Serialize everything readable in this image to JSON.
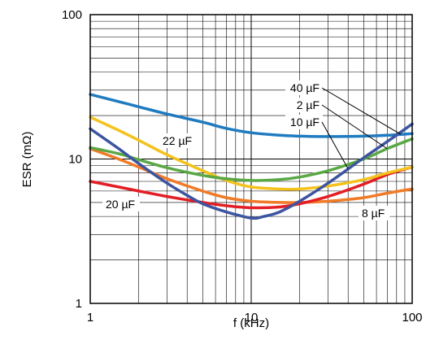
{
  "chart_data": {
    "type": "line",
    "title": "",
    "xlabel": "f (kHz)",
    "ylabel": "ESR (mΩ)",
    "xscale": "log",
    "yscale": "log",
    "xlim": [
      1,
      100
    ],
    "ylim": [
      1,
      100
    ],
    "grid": true,
    "x_ticks": [
      "1",
      "10",
      "100"
    ],
    "y_ticks": [
      "1",
      "10",
      "100"
    ],
    "series": [
      {
        "name": "40 µF",
        "color": "#1f7bc0",
        "x": [
          1,
          1.5,
          2,
          3,
          5,
          7,
          10,
          15,
          20,
          30,
          50,
          70,
          100
        ],
        "y": [
          28,
          25,
          23,
          20.5,
          18,
          16.3,
          15.2,
          14.6,
          14.4,
          14.3,
          14.4,
          14.6,
          15
        ]
      },
      {
        "name": "2 µF",
        "color": "#5aa845",
        "x": [
          1,
          1.5,
          2,
          3,
          5,
          7,
          10,
          15,
          20,
          30,
          50,
          70,
          100
        ],
        "y": [
          12,
          10.9,
          9.9,
          8.7,
          7.7,
          7.3,
          7.1,
          7.2,
          7.5,
          8.3,
          10,
          11.8,
          13.8
        ]
      },
      {
        "name": "10 µF",
        "color": "#3d54a0",
        "x": [
          1,
          1.5,
          2,
          3,
          4,
          5,
          7,
          10,
          12,
          15,
          20,
          30,
          50,
          70,
          100
        ],
        "y": [
          16.2,
          11.8,
          9.3,
          6.8,
          5.6,
          4.9,
          4.3,
          3.9,
          4.0,
          4.3,
          5.1,
          6.8,
          10.2,
          13.2,
          17.5
        ]
      },
      {
        "name": "22 µF",
        "color": "#f4c21b",
        "x": [
          1,
          1.5,
          2,
          3,
          5,
          7,
          10,
          15,
          20,
          30,
          50,
          70,
          100
        ],
        "y": [
          19.5,
          15.8,
          13.5,
          10.7,
          8.3,
          7.1,
          6.4,
          6.2,
          6.2,
          6.5,
          7.2,
          8,
          8.8
        ]
      },
      {
        "name": "20 µF",
        "color": "#e31e24",
        "x": [
          1,
          1.5,
          2,
          3,
          5,
          7,
          10,
          15,
          20,
          30,
          50,
          70,
          100
        ],
        "y": [
          7.0,
          6.4,
          6.0,
          5.5,
          5.0,
          4.75,
          4.6,
          4.65,
          4.9,
          5.5,
          6.7,
          7.8,
          8.8
        ]
      },
      {
        "name": "8 µF",
        "color": "#f07b27",
        "x": [
          1,
          1.5,
          2,
          3,
          5,
          7,
          10,
          15,
          20,
          30,
          50,
          70,
          100
        ],
        "y": [
          11.8,
          10.0,
          8.8,
          7.3,
          6.0,
          5.4,
          5.1,
          5.0,
          5.0,
          5.1,
          5.4,
          5.8,
          6.2
        ]
      }
    ],
    "annotations": [
      {
        "text": "40 µF",
        "series": "40 µF"
      },
      {
        "text": "2 µF",
        "series": "2 µF"
      },
      {
        "text": "10 µF",
        "series": "10 µF"
      },
      {
        "text": "22 µF",
        "series": "22 µF"
      },
      {
        "text": "20 µF",
        "series": "20 µF"
      },
      {
        "text": "8 µF",
        "series": "8 µF"
      }
    ]
  }
}
